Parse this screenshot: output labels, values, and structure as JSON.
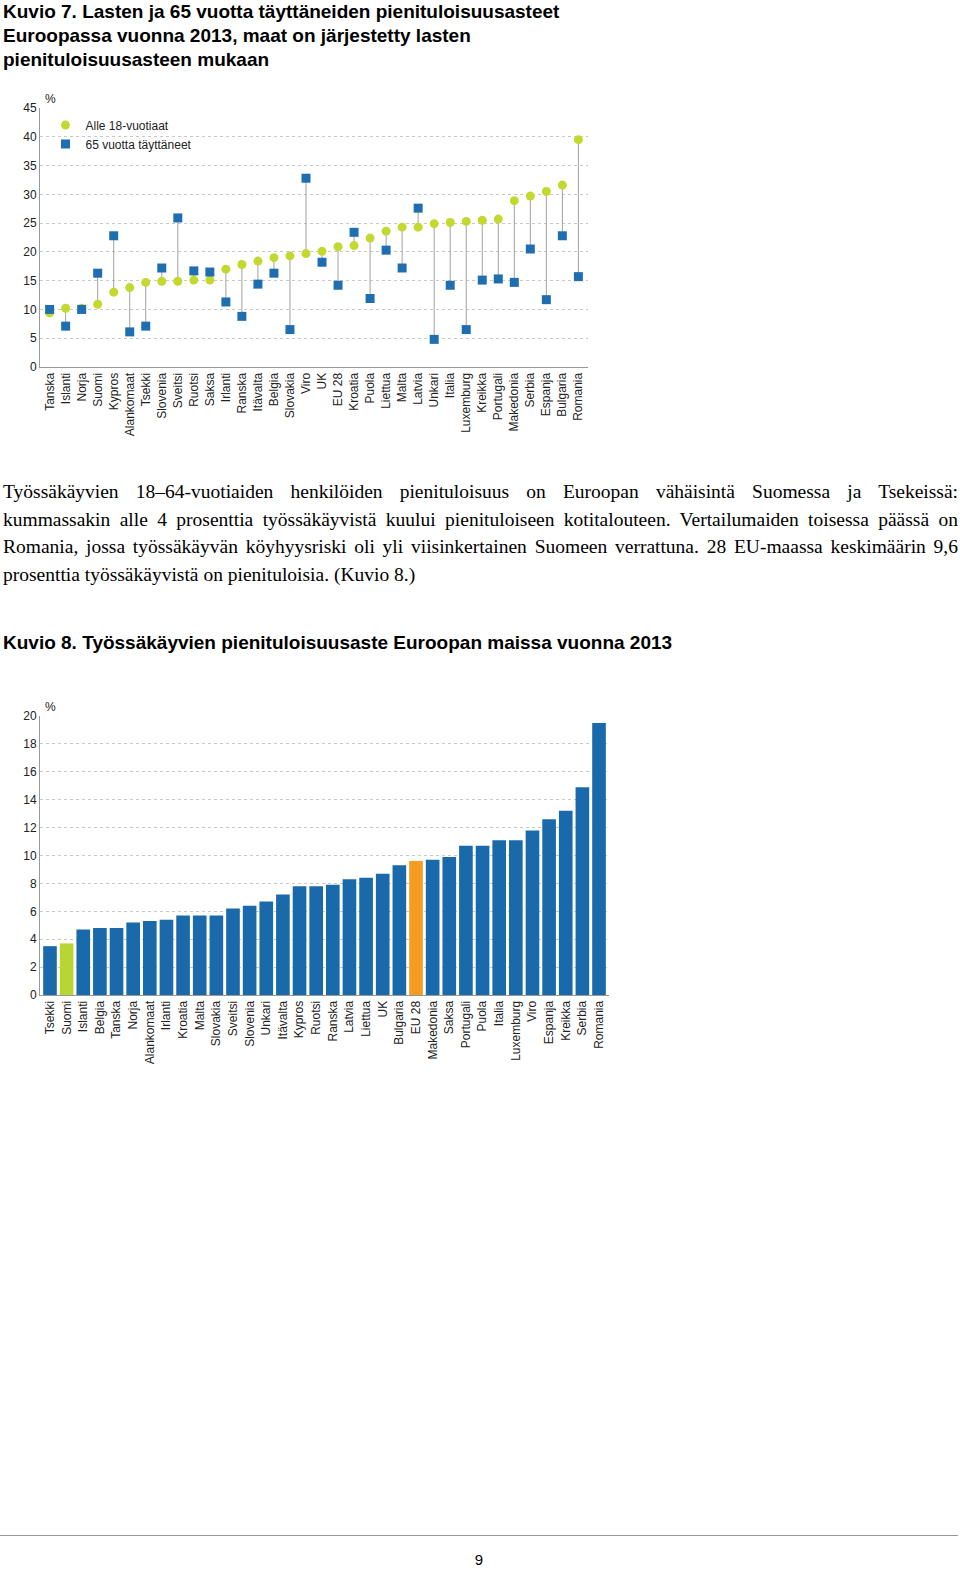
{
  "chart_data": [
    {
      "type": "scatter",
      "title": "Kuvio 7. Lasten ja 65 vuotta täyttäneiden pienituloisuusasteet Euroopassa vuonna 2013, maat on järjestetty lasten pienituloisuusasteen mukaan",
      "y_label": "%",
      "categories": [
        "Tanska",
        "Islanti",
        "Norja",
        "Suomi",
        "Kypros",
        "Alankomaat",
        "Tsekki",
        "Slovenia",
        "Sveitsi",
        "Ruotsi",
        "Saksa",
        "Irlanti",
        "Ranska",
        "Itävalta",
        "Belgia",
        "Slovakia",
        "Viro",
        "UK",
        "EU 28",
        "Kroatia",
        "Puola",
        "Liettua",
        "Malta",
        "Latvia",
        "Unkari",
        "Italia",
        "Luxemburg",
        "Kreikka",
        "Portugali",
        "Makedonia",
        "Serbia",
        "Espanja",
        "Bulgaria",
        "Romania"
      ],
      "series": [
        {
          "name": "Alle 18-vuotiaat",
          "color": "#c3d92f",
          "marker": "circle",
          "values": [
            9.4,
            10.2,
            10.2,
            10.9,
            13.0,
            13.8,
            14.7,
            14.9,
            14.9,
            15.1,
            15.1,
            17.0,
            17.8,
            18.4,
            19.0,
            19.3,
            19.7,
            20.1,
            20.9,
            21.1,
            22.4,
            23.6,
            24.3,
            24.3,
            24.9,
            25.1,
            25.3,
            25.5,
            25.7,
            28.9,
            29.7,
            30.5,
            31.6,
            39.5
          ]
        },
        {
          "name": "65 vuotta täyttäneet",
          "color": "#1f6fb0",
          "marker": "square",
          "values": [
            10.0,
            7.1,
            10.0,
            16.3,
            22.8,
            6.1,
            7.1,
            17.2,
            25.9,
            16.7,
            16.5,
            11.3,
            8.8,
            14.4,
            16.3,
            6.5,
            32.8,
            18.2,
            14.2,
            23.4,
            11.9,
            20.3,
            17.2,
            27.6,
            4.8,
            14.2,
            6.5,
            15.1,
            15.3,
            14.7,
            20.5,
            11.7,
            22.8,
            15.7
          ]
        }
      ],
      "ylim": [
        0,
        45
      ],
      "yticks": [
        0,
        5,
        10,
        15,
        20,
        25,
        30,
        35,
        40,
        45
      ],
      "grid": true,
      "legend": "top left"
    },
    {
      "type": "bar",
      "title": "Kuvio 8. Työssäkäyvien pienituloisuusaste Euroopan maissa vuonna 2013",
      "y_label": "%",
      "categories": [
        "Tsekki",
        "Suomi",
        "Islanti",
        "Belgia",
        "Tanska",
        "Norja",
        "Alankomaat",
        "Irlanti",
        "Kroatia",
        "Malta",
        "Slovakia",
        "Sveitsi",
        "Slovenia",
        "Unkari",
        "Itävalta",
        "Kypros",
        "Ruotsi",
        "Ranska",
        "Latvia",
        "Liettua",
        "UK",
        "Bulgaria",
        "EU 28",
        "Makedonia",
        "Saksa",
        "Portugali",
        "Puola",
        "Italia",
        "Luxemburg",
        "Viro",
        "Espanja",
        "Kreikka",
        "Serbia",
        "Romania"
      ],
      "values": [
        3.5,
        3.7,
        4.7,
        4.8,
        4.8,
        5.2,
        5.3,
        5.4,
        5.7,
        5.7,
        5.7,
        6.2,
        6.4,
        6.7,
        7.2,
        7.8,
        7.8,
        7.9,
        8.3,
        8.4,
        8.7,
        9.3,
        9.6,
        9.7,
        9.9,
        10.7,
        10.7,
        11.1,
        11.1,
        11.8,
        12.6,
        13.2,
        14.9,
        19.5
      ],
      "colors": [
        "#1a6aab",
        "#b9d533",
        "#1a6aab",
        "#1a6aab",
        "#1a6aab",
        "#1a6aab",
        "#1a6aab",
        "#1a6aab",
        "#1a6aab",
        "#1a6aab",
        "#1a6aab",
        "#1a6aab",
        "#1a6aab",
        "#1a6aab",
        "#1a6aab",
        "#1a6aab",
        "#1a6aab",
        "#1a6aab",
        "#1a6aab",
        "#1a6aab",
        "#1a6aab",
        "#1a6aab",
        "#f39c1f",
        "#1a6aab",
        "#1a6aab",
        "#1a6aab",
        "#1a6aab",
        "#1a6aab",
        "#1a6aab",
        "#1a6aab",
        "#1a6aab",
        "#1a6aab",
        "#1a6aab",
        "#1a6aab"
      ],
      "ylim": [
        0,
        20
      ],
      "yticks": [
        0,
        2,
        4,
        6,
        8,
        10,
        12,
        14,
        16,
        18,
        20
      ],
      "grid": true
    }
  ],
  "paragraph": "Työssäkäyvien 18–64-vuotiaiden henkilöiden pienituloisuus on Euroopan vähäisintä Suomessa ja Tsekeissä: kummassakin alle 4 prosenttia työssäkäyvistä kuului pienituloiseen kotitalouteen. Vertailumaiden toisessa päässä on Romania, jossa työssäkäyvän köyhyysriski oli yli viisinkertainen Suomeen verrattuna. 28 EU-maassa keskimäärin 9,6 prosenttia työssäkäyvistä on pienituloisia. (Kuvio 8.)",
  "page_number": "9"
}
